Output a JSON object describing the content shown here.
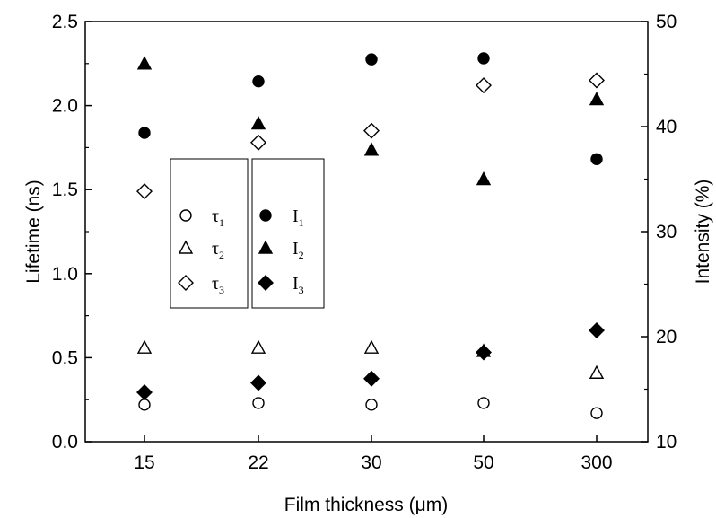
{
  "chart_data": {
    "type": "scatter",
    "xlabel": "Film thickness (μm)",
    "ylabel": "Lifetime (ns)",
    "y2label": "Intensity (%)",
    "categories": [
      "15",
      "22",
      "30",
      "50",
      "300"
    ],
    "ylim": [
      0.0,
      2.5
    ],
    "y_ticks": [
      "0.0",
      "0.5",
      "1.0",
      "1.5",
      "2.0",
      "2.5"
    ],
    "y2lim": [
      10,
      50
    ],
    "y2_ticks": [
      "10",
      "20",
      "30",
      "40",
      "50"
    ],
    "grid": false,
    "series": [
      {
        "name": "τ1",
        "axis": "left",
        "marker": "circle-open",
        "values": [
          0.22,
          0.23,
          0.22,
          0.23,
          0.17
        ]
      },
      {
        "name": "τ2",
        "axis": "left",
        "marker": "triangle-open",
        "values": [
          0.56,
          0.56,
          0.56,
          0.54,
          0.41
        ]
      },
      {
        "name": "τ3",
        "axis": "left",
        "marker": "diamond-open",
        "values": [
          1.49,
          1.78,
          1.85,
          2.12,
          2.15
        ]
      },
      {
        "name": "I1",
        "axis": "right",
        "marker": "circle-filled",
        "values": [
          39.4,
          44.3,
          46.4,
          46.5,
          36.9
        ]
      },
      {
        "name": "I2",
        "axis": "right",
        "marker": "triangle-filled",
        "values": [
          46.0,
          40.3,
          37.8,
          35.0,
          42.6
        ]
      },
      {
        "name": "I3",
        "axis": "right",
        "marker": "diamond-filled",
        "values": [
          14.7,
          15.6,
          16.0,
          18.5,
          20.6
        ]
      }
    ],
    "legend": [
      {
        "group": "lifetime",
        "symbol": "τ",
        "sub": "1",
        "marker": "circle-open"
      },
      {
        "group": "lifetime",
        "symbol": "τ",
        "sub": "2",
        "marker": "triangle-open"
      },
      {
        "group": "lifetime",
        "symbol": "τ",
        "sub": "3",
        "marker": "diamond-open"
      },
      {
        "group": "intensity",
        "symbol": "I",
        "sub": "1",
        "marker": "circle-filled"
      },
      {
        "group": "intensity",
        "symbol": "I",
        "sub": "2",
        "marker": "triangle-filled"
      },
      {
        "group": "intensity",
        "symbol": "I",
        "sub": "3",
        "marker": "diamond-filled"
      }
    ]
  }
}
